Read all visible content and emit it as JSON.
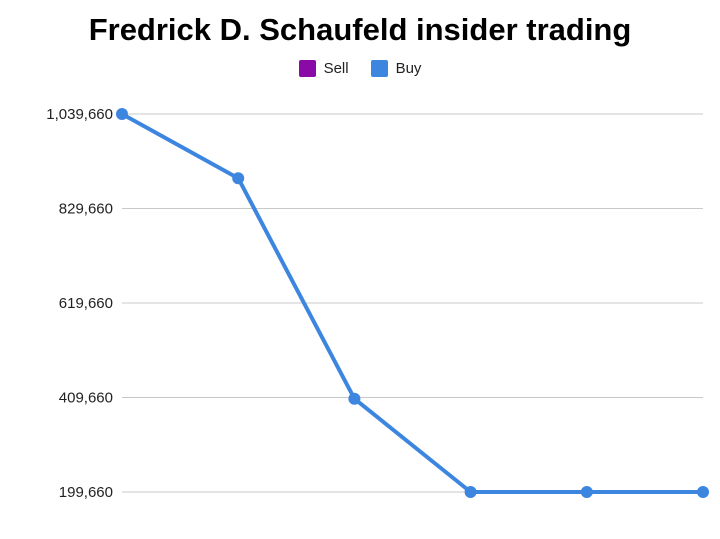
{
  "chart_data": {
    "type": "line",
    "title": "Fredrick D. Schaufeld insider trading",
    "legend_position": "top",
    "legend": [
      {
        "name": "Sell",
        "color": "#8a0aa8"
      },
      {
        "name": "Buy",
        "color": "#3d86e0"
      }
    ],
    "y_ticks": [
      "1,039,660",
      "829,660",
      "619,660",
      "409,660",
      "199,660"
    ],
    "y_tick_values": [
      1039660,
      829660,
      619660,
      409660,
      199660
    ],
    "ylim": [
      199660,
      1039660
    ],
    "grid": true,
    "series": [
      {
        "name": "Buy",
        "color": "#3d86e0",
        "values": [
          1039660,
          897000,
          407000,
          199660,
          199660,
          199660
        ]
      }
    ]
  }
}
